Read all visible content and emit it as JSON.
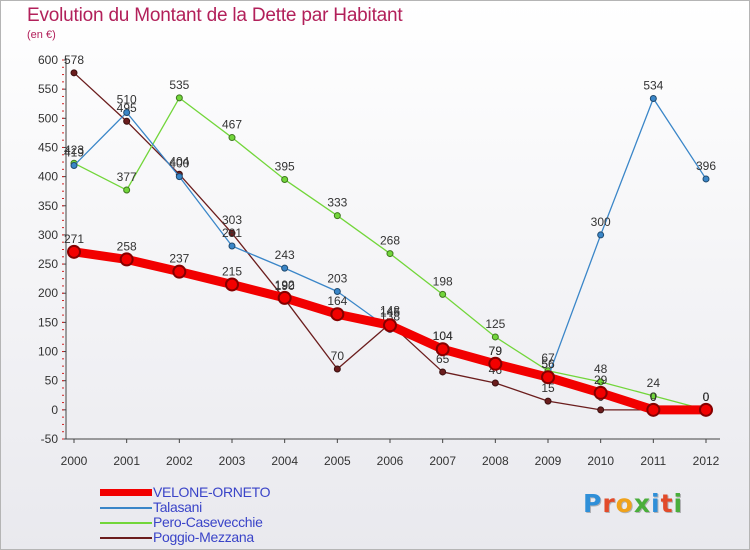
{
  "title": "Evolution du Montant de la Dette par Habitant",
  "unit": "(en €)",
  "logo": {
    "letters": [
      "P",
      "r",
      "o",
      "x",
      "i",
      "t",
      "i"
    ],
    "colors": [
      "#2f8fd8",
      "#e24b2a",
      "#f0a21b",
      "#4aae3b",
      "#2f8fd8",
      "#e24b2a",
      "#4aae3b"
    ]
  },
  "chart_data": {
    "type": "line",
    "x": [
      2000,
      2001,
      2002,
      2003,
      2004,
      2005,
      2006,
      2007,
      2008,
      2009,
      2010,
      2011,
      2012
    ],
    "x_labels": [
      "2000",
      "2001",
      "2002",
      "2003",
      "2004",
      "2005",
      "2006",
      "2007",
      "2008",
      "2009",
      "2010",
      "2011",
      "2012"
    ],
    "ylim": [
      -50,
      600
    ],
    "y_ticks": [
      -50,
      0,
      50,
      100,
      150,
      200,
      250,
      300,
      350,
      400,
      450,
      500,
      550,
      600
    ],
    "grid": false,
    "legend_position": "bottom-left",
    "series": [
      {
        "name": "VELONE-ORNETO",
        "color": "#f20000",
        "values": [
          271,
          258,
          237,
          215,
          192,
          164,
          145,
          104,
          79,
          56,
          29,
          0,
          0
        ]
      },
      {
        "name": "Talasani",
        "color": "#3a86c8",
        "values": [
          419,
          510,
          400,
          281,
          243,
          203,
          138,
          104,
          79,
          56,
          300,
          534,
          396
        ]
      },
      {
        "name": "Pero-Casevecchie",
        "color": "#72d63a",
        "values": [
          423,
          377,
          535,
          467,
          395,
          333,
          268,
          198,
          125,
          67,
          48,
          24,
          0
        ]
      },
      {
        "name": "Poggio-Mezzana",
        "color": "#6b1d1d",
        "values": [
          578,
          495,
          404,
          303,
          190,
          70,
          148,
          65,
          46,
          15,
          0,
          0,
          0
        ]
      }
    ]
  }
}
